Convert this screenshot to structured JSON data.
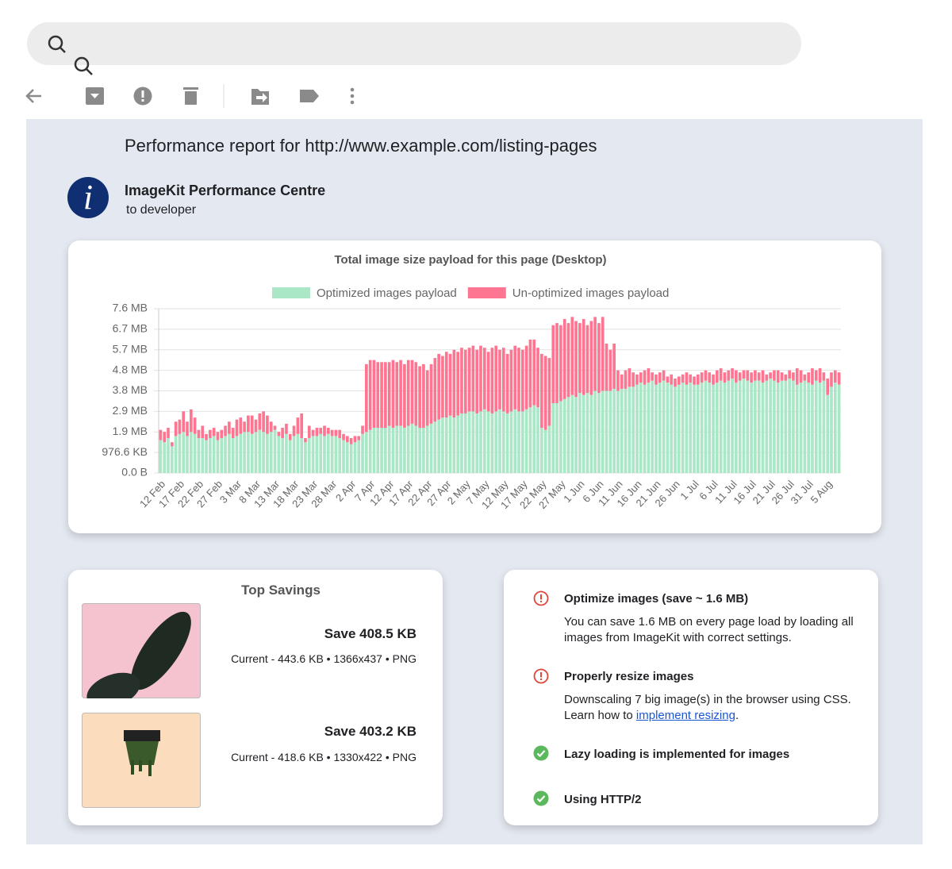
{
  "email": {
    "subject": "Performance report for http://www.example.com/listing-pages",
    "avatar": "i",
    "sender": "ImageKit Performance Centre",
    "recipient": "to developer"
  },
  "chart_data": {
    "type": "bar",
    "stacked": true,
    "grid": true,
    "title": "Total image size payload for this page (Desktop)",
    "categories": [
      "12 Feb",
      null,
      null,
      null,
      null,
      "17 Feb",
      null,
      null,
      null,
      null,
      "22 Feb",
      null,
      null,
      null,
      null,
      "27 Feb",
      null,
      null,
      null,
      null,
      "3 Mar",
      null,
      null,
      null,
      null,
      "8 Mar",
      null,
      null,
      null,
      null,
      "13 Mar",
      null,
      null,
      null,
      null,
      "18 Mar",
      null,
      null,
      null,
      null,
      "23 Mar",
      null,
      null,
      null,
      null,
      "28 Mar",
      null,
      null,
      null,
      null,
      "2 Apr",
      null,
      null,
      null,
      null,
      "7 Apr",
      null,
      null,
      null,
      null,
      "12 Apr",
      null,
      null,
      null,
      null,
      "17 Apr",
      null,
      null,
      null,
      null,
      "22 Apr",
      null,
      null,
      null,
      null,
      "27 Apr",
      null,
      null,
      null,
      null,
      "2 May",
      null,
      null,
      null,
      null,
      "7 May",
      null,
      null,
      null,
      null,
      "12 May",
      null,
      null,
      null,
      null,
      "17 May",
      null,
      null,
      null,
      null,
      "22 May",
      null,
      null,
      null,
      null,
      "27 May",
      null,
      null,
      null,
      null,
      "1 Jun",
      null,
      null,
      null,
      null,
      "6 Jun",
      null,
      null,
      null,
      null,
      "11 Jun",
      null,
      null,
      null,
      null,
      "16 Jun",
      null,
      null,
      null,
      null,
      "21 Jun",
      null,
      null,
      null,
      null,
      "26 Jun",
      null,
      null,
      null,
      null,
      "1 Jul",
      null,
      null,
      null,
      null,
      "6 Jul",
      null,
      null,
      null,
      null,
      "11 Jul",
      null,
      null,
      null,
      null,
      "16 Jul",
      null,
      null,
      null,
      null,
      "21 Jul",
      null,
      null,
      null,
      null,
      "26 Jul",
      null,
      null,
      null,
      null,
      "31 Jul",
      null,
      null,
      null,
      null,
      "5 Aug",
      null,
      null,
      null
    ],
    "series": [
      {
        "name": "Optimized images payload",
        "color": "#a9e7c6",
        "values": [
          1600000,
          1500000,
          1700000,
          1300000,
          1800000,
          1900000,
          2000000,
          1800000,
          2000000,
          1900000,
          1700000,
          1700000,
          1600000,
          1700000,
          1800000,
          1600000,
          1700000,
          1800000,
          1900000,
          1700000,
          1800000,
          1900000,
          2000000,
          2000000,
          1900000,
          2000000,
          2100000,
          2000000,
          1900000,
          2000000,
          2100000,
          1800000,
          1700000,
          1900000,
          1600000,
          1800000,
          1900000,
          1700000,
          1500000,
          1700000,
          1800000,
          1800000,
          1900000,
          1800000,
          1900000,
          1800000,
          1800000,
          1700000,
          1600000,
          1500000,
          1400000,
          1500000,
          1600000,
          1900000,
          2000000,
          2100000,
          2200000,
          2200000,
          2200000,
          2200000,
          2300000,
          2200000,
          2300000,
          2300000,
          2200000,
          2300000,
          2400000,
          2300000,
          2200000,
          2200000,
          2300000,
          2400000,
          2500000,
          2600000,
          2700000,
          2700000,
          2800000,
          2700000,
          2800000,
          2900000,
          2900000,
          3000000,
          3000000,
          2900000,
          3000000,
          3100000,
          3000000,
          2900000,
          3000000,
          3100000,
          3000000,
          2900000,
          3000000,
          3100000,
          3000000,
          3000000,
          3100000,
          3200000,
          3300000,
          3200000,
          2200000,
          2100000,
          2300000,
          3400000,
          3400000,
          3500000,
          3600000,
          3700000,
          3800000,
          3700000,
          3900000,
          3800000,
          3900000,
          3800000,
          4000000,
          3900000,
          4000000,
          4000000,
          4000000,
          4100000,
          4000000,
          4100000,
          4100000,
          4200000,
          4200000,
          4300000,
          4400000,
          4300000,
          4400000,
          4500000,
          4300000,
          4400000,
          4500000,
          4400000,
          4300000,
          4200000,
          4300000,
          4400000,
          4300000,
          4400000,
          4300000,
          4300000,
          4400000,
          4500000,
          4400000,
          4300000,
          4400000,
          4500000,
          4400000,
          4500000,
          4600000,
          4400000,
          4500000,
          4600000,
          4500000,
          4400000,
          4500000,
          4500000,
          4400000,
          4500000,
          4600000,
          4500000,
          4400000,
          4500000,
          4500000,
          4600000,
          4500000,
          4300000,
          4400000,
          4500000,
          4400000,
          4300000,
          4500000,
          4400000,
          4500000,
          3800000,
          4200000,
          4400000,
          4300000
        ]
      },
      {
        "name": "Un-optimized images payload",
        "color": "#fd7590",
        "values": [
          500000,
          500000,
          500000,
          200000,
          700000,
          700000,
          1000000,
          700000,
          1100000,
          800000,
          400000,
          600000,
          300000,
          400000,
          400000,
          400000,
          400000,
          500000,
          600000,
          500000,
          800000,
          800000,
          500000,
          800000,
          900000,
          600000,
          800000,
          1000000,
          900000,
          500000,
          200000,
          200000,
          500000,
          500000,
          300000,
          500000,
          800000,
          1200000,
          200000,
          600000,
          300000,
          400000,
          300000,
          500000,
          300000,
          300000,
          300000,
          400000,
          300000,
          300000,
          300000,
          300000,
          200000,
          400000,
          3300000,
          3400000,
          3300000,
          3200000,
          3200000,
          3200000,
          3100000,
          3300000,
          3100000,
          3200000,
          3100000,
          3200000,
          3100000,
          3100000,
          3000000,
          3100000,
          2700000,
          2900000,
          3100000,
          3200000,
          3000000,
          3200000,
          3000000,
          3300000,
          3100000,
          3200000,
          3100000,
          3100000,
          3200000,
          3100000,
          3200000,
          3000000,
          2900000,
          3200000,
          3200000,
          2900000,
          3100000,
          2900000,
          3000000,
          3100000,
          3100000,
          3000000,
          3100000,
          3300000,
          3200000,
          2900000,
          3600000,
          3600000,
          3300000,
          3800000,
          3900000,
          3700000,
          3900000,
          3600000,
          3800000,
          3700000,
          3400000,
          3700000,
          3300000,
          3600000,
          3600000,
          3400000,
          3600000,
          2300000,
          2000000,
          2200000,
          1000000,
          700000,
          900000,
          900000,
          700000,
          500000,
          500000,
          700000,
          700000,
          400000,
          500000,
          500000,
          500000,
          300000,
          500000,
          400000,
          400000,
          400000,
          600000,
          400000,
          400000,
          500000,
          500000,
          500000,
          500000,
          500000,
          600000,
          600000,
          500000,
          500000,
          500000,
          600000,
          400000,
          400000,
          500000,
          500000,
          500000,
          400000,
          600000,
          300000,
          300000,
          500000,
          600000,
          400000,
          300000,
          400000,
          400000,
          800000,
          600000,
          300000,
          500000,
          800000,
          500000,
          700000,
          400000,
          800000,
          700000,
          600000,
          600000
        ]
      }
    ],
    "ylim": [
      0,
      8000000
    ],
    "yticks": [
      {
        "value": 0,
        "label": "0.0 B"
      },
      {
        "value": 1000000,
        "label": "976.6 KB"
      },
      {
        "value": 2000000,
        "label": "1.9 MB"
      },
      {
        "value": 3000000,
        "label": "2.9 MB"
      },
      {
        "value": 4000000,
        "label": "3.8 MB"
      },
      {
        "value": 5000000,
        "label": "4.8 MB"
      },
      {
        "value": 6000000,
        "label": "5.7 MB"
      },
      {
        "value": 7000000,
        "label": "6.7 MB"
      },
      {
        "value": 8000000,
        "label": "7.6 MB"
      }
    ]
  },
  "savings": {
    "title": "Top Savings",
    "items": [
      {
        "save": "Save 408.5 KB",
        "details": "Current - 443.6 KB • 1366x437 • PNG"
      },
      {
        "save": "Save 403.2 KB",
        "details": "Current - 418.6 KB • 1330x422 • PNG"
      }
    ]
  },
  "recommendations": [
    {
      "status": "warning",
      "title": "Optimize images (save ~ 1.6 MB)",
      "text": "You can save 1.6 MB on every page load by loading all images from ImageKit with correct settings."
    },
    {
      "status": "warning",
      "title": "Properly resize images",
      "text": "Downscaling 7 big image(s) in the browser using CSS. Learn how to ",
      "link": "implement resizing",
      "after": "."
    },
    {
      "status": "pass",
      "title": "Lazy loading is implemented for images"
    },
    {
      "status": "pass",
      "title": "Using HTTP/2"
    }
  ]
}
